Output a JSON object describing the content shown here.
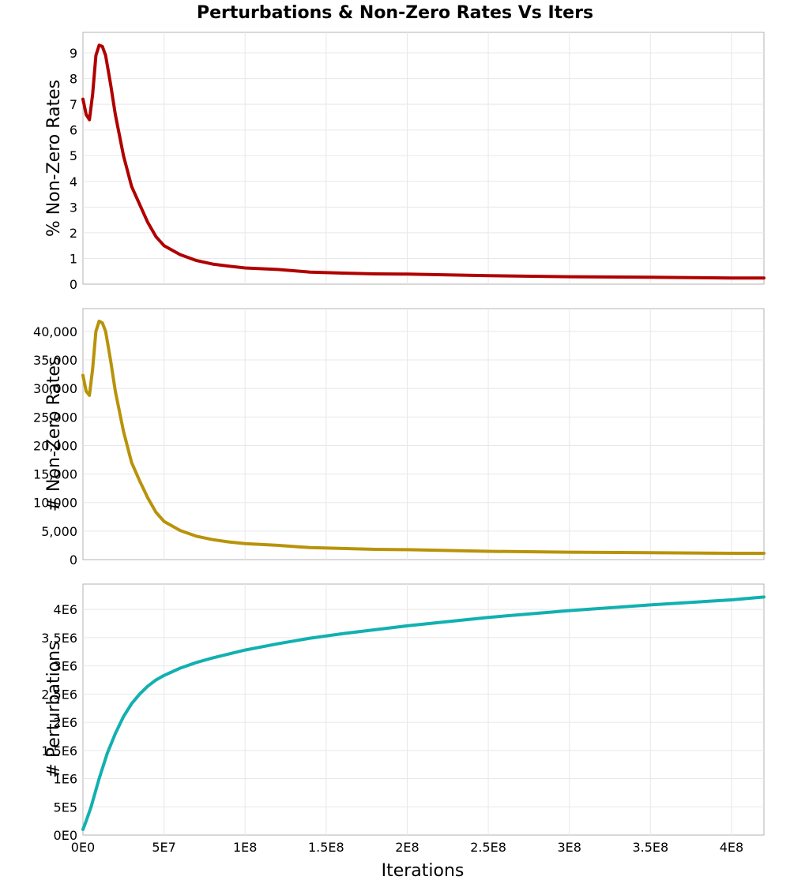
{
  "chart_data": {
    "title": "Perturbations & Non-Zero Rates Vs Iters",
    "xlabel": "Iterations",
    "xlim": [
      0,
      420000000
    ],
    "xticks": [
      0,
      50000000,
      100000000,
      150000000,
      200000000,
      250000000,
      300000000,
      350000000,
      400000000
    ],
    "xtick_labels": [
      "0E0",
      "5E7",
      "1E8",
      "1.5E8",
      "2E8",
      "2.5E8",
      "3E8",
      "3.5E8",
      "4E8"
    ],
    "grid": true,
    "panels": [
      {
        "type": "line",
        "ylabel": "% Non-Zero Rates",
        "ylim": [
          0,
          9.8
        ],
        "yticks": [
          0,
          1,
          2,
          3,
          4,
          5,
          6,
          7,
          8,
          9
        ],
        "ytick_labels": [
          "0",
          "1",
          "2",
          "3",
          "4",
          "5",
          "6",
          "7",
          "8",
          "9"
        ],
        "color": "#b00000",
        "series": [
          {
            "x": [
              0,
              2000000,
              4000000,
              6000000,
              8000000,
              10000000,
              12000000,
              14000000,
              17000000,
              20000000,
              25000000,
              30000000,
              35000000,
              40000000,
              45000000,
              50000000,
              60000000,
              70000000,
              80000000,
              90000000,
              100000000,
              120000000,
              140000000,
              160000000,
              180000000,
              200000000,
              250000000,
              300000000,
              350000000,
              400000000,
              420000000
            ],
            "y": [
              7.2,
              6.6,
              6.4,
              7.4,
              8.9,
              9.3,
              9.25,
              8.9,
              7.8,
              6.6,
              5.0,
              3.8,
              3.1,
              2.4,
              1.85,
              1.5,
              1.15,
              0.92,
              0.78,
              0.7,
              0.63,
              0.57,
              0.47,
              0.43,
              0.4,
              0.39,
              0.33,
              0.29,
              0.27,
              0.24,
              0.24
            ]
          }
        ]
      },
      {
        "type": "line",
        "ylabel": "# Non-Zero Rates",
        "ylim": [
          0,
          44000
        ],
        "yticks": [
          0,
          5000,
          10000,
          15000,
          20000,
          25000,
          30000,
          35000,
          40000
        ],
        "ytick_labels": [
          "0",
          "5,000",
          "10,000",
          "15,000",
          "20,000",
          "25,000",
          "30,000",
          "35,000",
          "40,000"
        ],
        "color": "#b8930a",
        "series": [
          {
            "x": [
              0,
              2000000,
              4000000,
              6000000,
              8000000,
              10000000,
              12000000,
              14000000,
              17000000,
              20000000,
              25000000,
              30000000,
              35000000,
              40000000,
              45000000,
              50000000,
              60000000,
              70000000,
              80000000,
              90000000,
              100000000,
              120000000,
              140000000,
              160000000,
              180000000,
              200000000,
              250000000,
              300000000,
              350000000,
              400000000,
              420000000
            ],
            "y": [
              32300,
              29500,
              28800,
              33500,
              40000,
              41800,
              41500,
              40000,
              35000,
              29500,
              22500,
              17000,
              13800,
              10800,
              8300,
              6700,
              5100,
              4100,
              3500,
              3100,
              2800,
              2500,
              2100,
              1950,
              1800,
              1750,
              1450,
              1300,
              1200,
              1100,
              1100
            ]
          }
        ]
      },
      {
        "type": "line",
        "ylabel": "# Perturbations",
        "ylim": [
          0,
          4450000
        ],
        "yticks": [
          0,
          500000,
          1000000,
          1500000,
          2000000,
          2500000,
          3000000,
          3500000,
          4000000
        ],
        "ytick_labels": [
          "0E0",
          "5E5",
          "1E6",
          "1.5E6",
          "2E6",
          "2.5E6",
          "3E6",
          "3.5E6",
          "4E6"
        ],
        "color": "#12b0b0",
        "series": [
          {
            "x": [
              0,
              2000000,
              5000000,
              8000000,
              10000000,
              15000000,
              20000000,
              25000000,
              30000000,
              35000000,
              40000000,
              45000000,
              50000000,
              60000000,
              70000000,
              80000000,
              100000000,
              120000000,
              140000000,
              160000000,
              180000000,
              200000000,
              250000000,
              300000000,
              350000000,
              400000000,
              420000000
            ],
            "y": [
              100000,
              250000,
              500000,
              800000,
              1000000,
              1450000,
              1800000,
              2100000,
              2330000,
              2500000,
              2640000,
              2750000,
              2830000,
              2960000,
              3060000,
              3140000,
              3280000,
              3390000,
              3490000,
              3570000,
              3640000,
              3710000,
              3860000,
              3980000,
              4080000,
              4170000,
              4220000
            ]
          }
        ]
      }
    ]
  }
}
